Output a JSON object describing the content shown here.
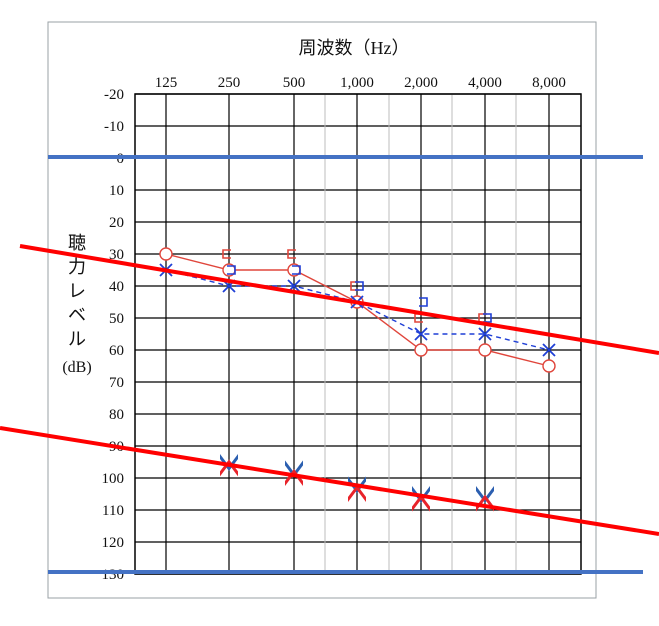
{
  "chart_data": {
    "type": "line",
    "title": "周波数（Hz）",
    "ylabel_chars": [
      "聴",
      "力",
      "レ",
      "ベ",
      "ル"
    ],
    "ylabel_unit": "(dB)",
    "x_ticks": [
      "125",
      "250",
      "500",
      "1,000",
      "2,000",
      "4,000",
      "8,000"
    ],
    "y_ticks": [
      -20,
      -10,
      0,
      10,
      20,
      30,
      40,
      50,
      60,
      70,
      80,
      90,
      100,
      110,
      120,
      130
    ],
    "ylim": [
      -20,
      130
    ],
    "y_inverted": true,
    "series": [
      {
        "marker": "circle",
        "color": "#e0463c",
        "line": "solid",
        "x": [
          "125",
          "250",
          "500",
          "1,000",
          "2,000",
          "4,000",
          "8,000"
        ],
        "values": [
          30,
          35,
          35,
          45,
          60,
          60,
          65
        ]
      },
      {
        "marker": "cross",
        "color": "#1f3fd6",
        "line": "dashed",
        "x": [
          "125",
          "250",
          "500",
          "1,000",
          "2,000",
          "4,000",
          "8,000"
        ],
        "values": [
          35,
          40,
          40,
          45,
          55,
          55,
          60
        ]
      },
      {
        "marker": "left-bracket",
        "color": "#e0463c",
        "line": "none",
        "x": [
          "250",
          "500",
          "1,000",
          "2,000",
          "4,000"
        ],
        "values": [
          30,
          30,
          40,
          50,
          50
        ]
      },
      {
        "marker": "right-bracket",
        "color": "#1f3fd6",
        "line": "none",
        "x": [
          "250",
          "500",
          "1,000",
          "2,000",
          "4,000"
        ],
        "values": [
          35,
          35,
          40,
          45,
          50
        ]
      },
      {
        "marker": "arrow-down",
        "color": "#2b5fb0",
        "line": "none",
        "x": [
          "250",
          "500",
          "1,000",
          "2,000",
          "4,000"
        ],
        "values": [
          95,
          97,
          102,
          105,
          105
        ]
      },
      {
        "marker": "arrow-up",
        "color": "#e8232a",
        "line": "none",
        "x": [
          "250",
          "500",
          "1,000",
          "2,000",
          "4,000"
        ],
        "values": [
          97,
          100,
          105,
          108,
          108
        ]
      }
    ],
    "annotation_lines": [
      {
        "color": "#4472c4",
        "from": {
          "x": "below-125",
          "y": 0
        },
        "to": {
          "x": "beyond-8,000",
          "y": 0
        }
      },
      {
        "color": "#4472c4",
        "from": {
          "x": "below-125",
          "y": 130
        },
        "to": {
          "x": "beyond-8,000",
          "y": 130
        }
      },
      {
        "color": "#ff0000",
        "from": {
          "x": "far-left",
          "y": 24
        },
        "to": {
          "x": "far-right",
          "y": 66
        }
      },
      {
        "color": "#ff0000",
        "from": {
          "x": "far-left",
          "y": 85
        },
        "to": {
          "x": "far-right",
          "y": 125
        }
      }
    ],
    "grid": true
  }
}
